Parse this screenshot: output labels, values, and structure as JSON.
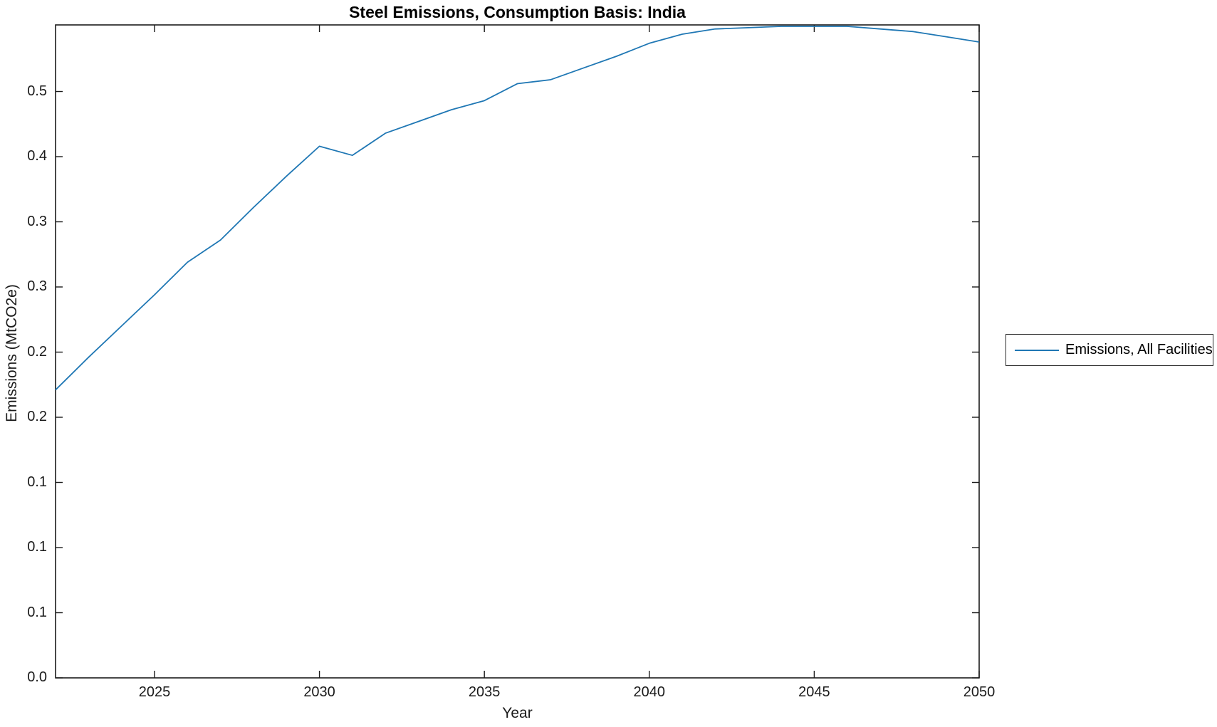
{
  "figure": {
    "background_color": "#ffffff",
    "axis_color": "#1a1a1a"
  },
  "chart_data": {
    "type": "line",
    "title": "Steel Emissions, Consumption Basis: India",
    "xlabel": "Year",
    "ylabel": "Emissions (MtCO2e)",
    "xlim": [
      2022,
      2050
    ],
    "ylim": [
      0,
      0.5011
    ],
    "grid": false,
    "x_ticks": {
      "values": [
        2025,
        2030,
        2035,
        2040,
        2045,
        2050
      ],
      "labels": [
        "2025",
        "2030",
        "2035",
        "2040",
        "2045",
        "2050"
      ]
    },
    "y_ticks": {
      "values": [
        0.0,
        0.05,
        0.1,
        0.15,
        0.2,
        0.25,
        0.3,
        0.35,
        0.4,
        0.45
      ],
      "labels": [
        "0.0",
        "0.1",
        "0.1",
        "0.1",
        "0.2",
        "0.2",
        "0.3",
        "0.3",
        "0.4",
        "0.5"
      ]
    },
    "x": [
      2022,
      2023,
      2024,
      2025,
      2026,
      2027,
      2028,
      2029,
      2030,
      2031,
      2032,
      2033,
      2034,
      2035,
      2036,
      2037,
      2038,
      2039,
      2040,
      2041,
      2042,
      2043,
      2044,
      2045,
      2046,
      2047,
      2048,
      2049,
      2050
    ],
    "series": [
      {
        "name": "Emissions, All Facilities",
        "color": "#1f77b4",
        "values": [
          0.221,
          0.246,
          0.27,
          0.294,
          0.319,
          0.336,
          0.361,
          0.385,
          0.408,
          0.401,
          0.418,
          0.427,
          0.436,
          0.443,
          0.456,
          0.459,
          0.468,
          0.477,
          0.487,
          0.494,
          0.498,
          0.499,
          0.5,
          0.5,
          0.5,
          0.498,
          0.496,
          0.492,
          0.488
        ]
      }
    ],
    "legend": {
      "position": "center-right-outside",
      "entries": [
        "Emissions, All Facilities"
      ]
    }
  }
}
